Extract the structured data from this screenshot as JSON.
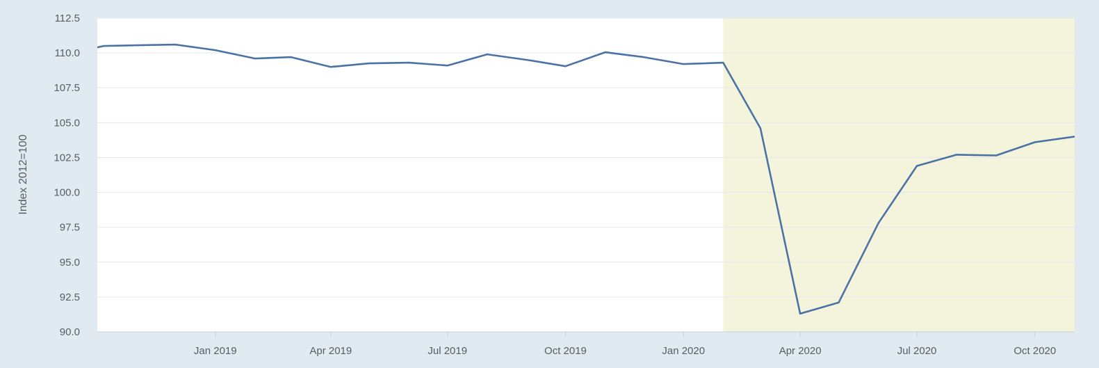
{
  "chart_data": {
    "type": "line",
    "title": "",
    "xlabel": "",
    "ylabel": "Index 2012=100",
    "ylim": [
      90,
      112.5
    ],
    "xlim": [
      "2018-10-01",
      "2020-11-01"
    ],
    "yticks": [
      "90.0",
      "92.5",
      "95.0",
      "97.5",
      "100.0",
      "102.5",
      "105.0",
      "107.5",
      "110.0",
      "112.5"
    ],
    "xticks": [
      {
        "date": "2019-01-01",
        "label": "Jan 2019"
      },
      {
        "date": "2019-04-01",
        "label": "Apr 2019"
      },
      {
        "date": "2019-07-01",
        "label": "Jul 2019"
      },
      {
        "date": "2019-10-01",
        "label": "Oct 2019"
      },
      {
        "date": "2020-01-01",
        "label": "Jan 2020"
      },
      {
        "date": "2020-04-01",
        "label": "Apr 2020"
      },
      {
        "date": "2020-07-01",
        "label": "Jul 2020"
      },
      {
        "date": "2020-10-01",
        "label": "Oct 2020"
      }
    ],
    "grid": true,
    "shaded_region": {
      "start": "2020-02-01",
      "end": "2020-11-01",
      "color": "#f4f4dc"
    },
    "series": [
      {
        "color": "#4a72a4",
        "points": [
          {
            "x": "2018-10-01",
            "y": 110.4
          },
          {
            "x": "2018-10-06",
            "y": 110.5
          },
          {
            "x": "2018-11-01",
            "y": 110.55
          },
          {
            "x": "2018-12-01",
            "y": 110.6
          },
          {
            "x": "2019-01-01",
            "y": 110.2
          },
          {
            "x": "2019-02-01",
            "y": 109.6
          },
          {
            "x": "2019-03-01",
            "y": 109.7
          },
          {
            "x": "2019-04-01",
            "y": 109.0
          },
          {
            "x": "2019-05-01",
            "y": 109.25
          },
          {
            "x": "2019-06-01",
            "y": 109.3
          },
          {
            "x": "2019-07-01",
            "y": 109.1
          },
          {
            "x": "2019-08-01",
            "y": 109.9
          },
          {
            "x": "2019-09-01",
            "y": 109.5
          },
          {
            "x": "2019-10-01",
            "y": 109.05
          },
          {
            "x": "2019-11-01",
            "y": 110.05
          },
          {
            "x": "2019-12-01",
            "y": 109.7
          },
          {
            "x": "2020-01-01",
            "y": 109.2
          },
          {
            "x": "2020-02-01",
            "y": 109.3
          },
          {
            "x": "2020-03-01",
            "y": 104.6
          },
          {
            "x": "2020-04-01",
            "y": 91.3
          },
          {
            "x": "2020-05-01",
            "y": 92.1
          },
          {
            "x": "2020-06-01",
            "y": 97.8
          },
          {
            "x": "2020-07-01",
            "y": 101.9
          },
          {
            "x": "2020-08-01",
            "y": 102.7
          },
          {
            "x": "2020-09-01",
            "y": 102.65
          },
          {
            "x": "2020-10-01",
            "y": 103.6
          },
          {
            "x": "2020-11-01",
            "y": 104.0
          }
        ]
      }
    ]
  }
}
